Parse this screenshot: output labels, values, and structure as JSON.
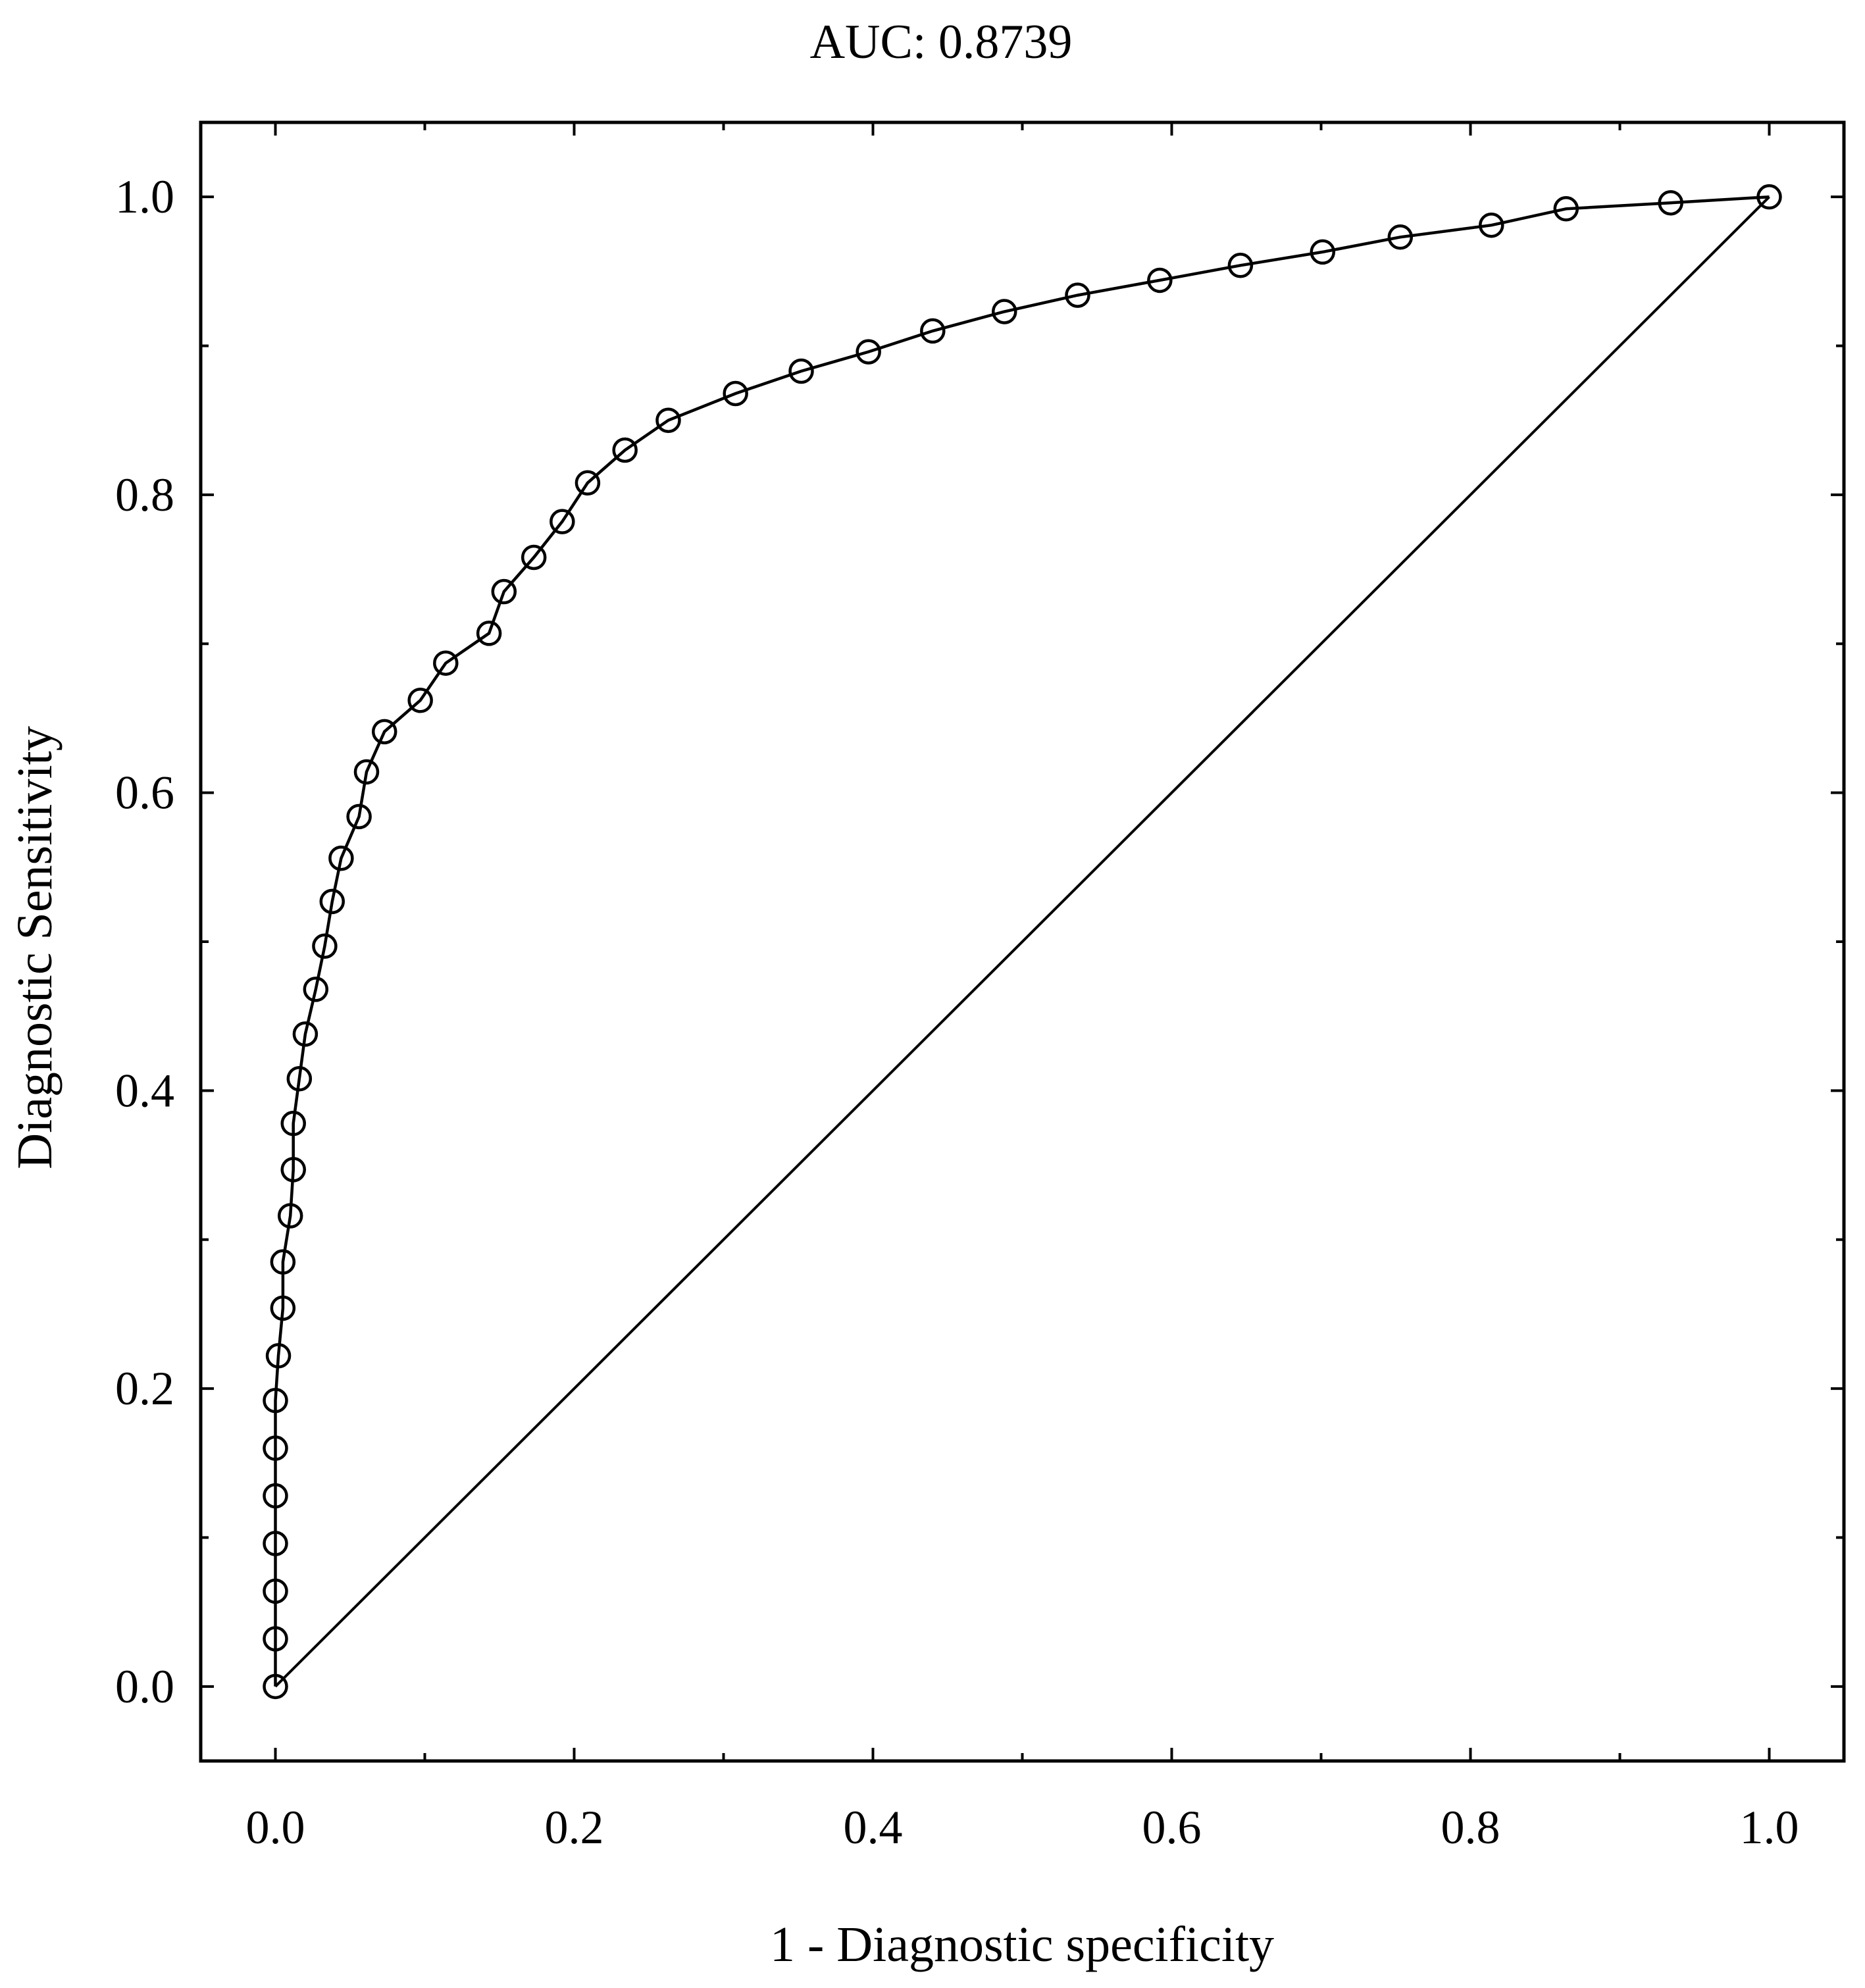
{
  "chart_data": {
    "type": "line",
    "title": "AUC:  0.8739",
    "xlabel": "1 - Diagnostic specificity",
    "ylabel": "Diagnostic Sensitivity",
    "xlim": [
      -0.05,
      1.05
    ],
    "ylim": [
      -0.05,
      1.05
    ],
    "x_ticks": [
      0.0,
      0.2,
      0.4,
      0.6,
      0.8,
      1.0
    ],
    "y_ticks": [
      0.0,
      0.2,
      0.4,
      0.6,
      0.8,
      1.0
    ],
    "x_tick_labels": [
      "0.0",
      "0.2",
      "0.4",
      "0.6",
      "0.8",
      "1.0"
    ],
    "y_tick_labels": [
      "0.0",
      "0.2",
      "0.4",
      "0.6",
      "0.8",
      "1.0"
    ],
    "grid": false,
    "series": [
      {
        "marker": "open-circle",
        "x": [
          0.0,
          0.0,
          0.0,
          0.0,
          0.0,
          0.0,
          0.0,
          0.002,
          0.005,
          0.005,
          0.01,
          0.012,
          0.012,
          0.016,
          0.02,
          0.027,
          0.033,
          0.038,
          0.044,
          0.056,
          0.061,
          0.073,
          0.097,
          0.114,
          0.143,
          0.153,
          0.173,
          0.192,
          0.209,
          0.234,
          0.263,
          0.308,
          0.352,
          0.397,
          0.44,
          0.488,
          0.537,
          0.592,
          0.646,
          0.701,
          0.753,
          0.814,
          0.864,
          0.934,
          1.0
        ],
        "y": [
          0.0,
          0.032,
          0.064,
          0.096,
          0.128,
          0.16,
          0.192,
          0.222,
          0.254,
          0.285,
          0.316,
          0.347,
          0.378,
          0.408,
          0.438,
          0.468,
          0.497,
          0.527,
          0.556,
          0.584,
          0.614,
          0.641,
          0.662,
          0.687,
          0.707,
          0.735,
          0.758,
          0.782,
          0.808,
          0.83,
          0.85,
          0.868,
          0.883,
          0.896,
          0.91,
          0.923,
          0.934,
          0.944,
          0.954,
          0.963,
          0.973,
          0.981,
          0.992,
          0.996,
          1.0
        ]
      }
    ],
    "reference_line": {
      "x": [
        0.0,
        1.0
      ],
      "y": [
        0.0,
        1.0
      ]
    }
  }
}
